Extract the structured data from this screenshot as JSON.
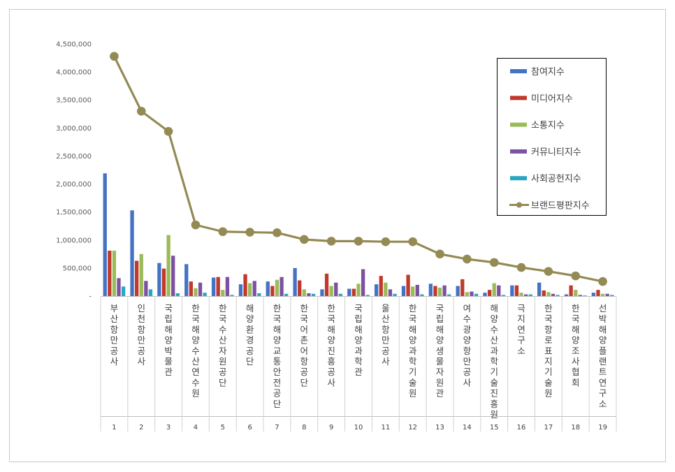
{
  "chart_data": {
    "type": "bar",
    "title": "",
    "xlabel": "",
    "ylabel": "",
    "ylim": [
      0,
      4500000
    ],
    "yticks": [
      "-",
      "500,000",
      "1,000,000",
      "1,500,000",
      "2,000,000",
      "2,500,000",
      "3,000,000",
      "3,500,000",
      "4,000,000",
      "4,500,000"
    ],
    "grid": false,
    "legend_position": "top-right",
    "categories": [
      "부산항만공사",
      "인천항만공사",
      "국립해양박물관",
      "한국해양수산연수원",
      "한국수산자원공단",
      "해양환경공단",
      "한국해양교통안전공단",
      "한국어촌어항공단",
      "한국해양진흥공사",
      "국립해양과학관",
      "울산항만공사",
      "한국해양과학기술원",
      "국립해양생물자원관",
      "여수광양항만공사",
      "해양수산과학기술진흥원",
      "극지연구소",
      "한국항로표지기술원",
      "한국해양조사협회",
      "선박해양플랜트연구소"
    ],
    "ranks": [
      "1",
      "2",
      "3",
      "4",
      "5",
      "6",
      "7",
      "8",
      "9",
      "10",
      "11",
      "12",
      "13",
      "14",
      "15",
      "16",
      "17",
      "18",
      "19"
    ],
    "series": [
      {
        "name": "참여지수",
        "type": "bar",
        "color": "#4472c4",
        "values": [
          2190000,
          1530000,
          590000,
          570000,
          330000,
          210000,
          260000,
          500000,
          120000,
          130000,
          210000,
          180000,
          220000,
          180000,
          60000,
          190000,
          240000,
          30000,
          60000
        ]
      },
      {
        "name": "미디어지수",
        "type": "bar",
        "color": "#c0392b",
        "values": [
          810000,
          630000,
          490000,
          260000,
          340000,
          390000,
          180000,
          280000,
          400000,
          130000,
          360000,
          380000,
          180000,
          300000,
          110000,
          190000,
          100000,
          190000,
          110000
        ]
      },
      {
        "name": "소통지수",
        "type": "bar",
        "color": "#9bbb59",
        "values": [
          810000,
          750000,
          1090000,
          140000,
          110000,
          230000,
          290000,
          120000,
          180000,
          220000,
          240000,
          170000,
          150000,
          70000,
          230000,
          60000,
          70000,
          110000,
          40000
        ]
      },
      {
        "name": "커뮤니티지수",
        "type": "bar",
        "color": "#7c51a1",
        "values": [
          320000,
          270000,
          720000,
          240000,
          340000,
          270000,
          340000,
          50000,
          240000,
          480000,
          120000,
          200000,
          190000,
          80000,
          190000,
          30000,
          40000,
          20000,
          40000
        ]
      },
      {
        "name": "사회공헌지수",
        "type": "bar",
        "color": "#2aa5c2",
        "values": [
          170000,
          120000,
          50000,
          60000,
          20000,
          50000,
          40000,
          40000,
          40000,
          20000,
          40000,
          30000,
          30000,
          40000,
          20000,
          30000,
          20000,
          10000,
          20000
        ]
      },
      {
        "name": "브랜드평판지수",
        "type": "line",
        "color": "#948a54",
        "values": [
          4280000,
          3300000,
          2940000,
          1270000,
          1150000,
          1140000,
          1130000,
          1010000,
          980000,
          980000,
          970000,
          970000,
          750000,
          660000,
          600000,
          510000,
          440000,
          360000,
          260000
        ]
      }
    ]
  }
}
